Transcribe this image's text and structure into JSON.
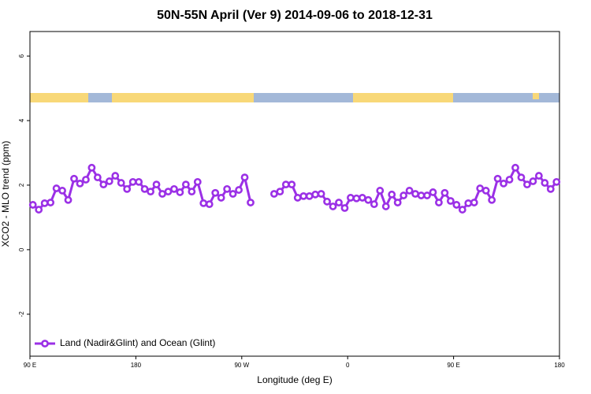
{
  "chart_data": {
    "type": "line",
    "title": "50N-55N April (Ver 9)   2014-09-06 to 2018-12-31",
    "xlabel": "Longitude (deg E)",
    "ylabel": "XCO2 - MLO trend (ppm)",
    "x": [
      92.5,
      97.5,
      102.5,
      107.5,
      112.5,
      117.5,
      122.5,
      127.5,
      132.5,
      137.5,
      142.5,
      147.5,
      152.5,
      157.5,
      162.5,
      167.5,
      172.5,
      177.5,
      182.5,
      187.5,
      192.5,
      197.5,
      202.5,
      207.5,
      212.5,
      217.5,
      222.5,
      227.5,
      232.5,
      237.5,
      242.5,
      247.5,
      252.5,
      257.5,
      262.5,
      267.5,
      272.5,
      277.5,
      282.5,
      287.5,
      292.5,
      297.5,
      302.5,
      307.5,
      312.5,
      317.5,
      322.5,
      327.5,
      332.5,
      337.5,
      342.5,
      347.5,
      352.5,
      357.5,
      362.5,
      367.5,
      372.5,
      377.5,
      382.5,
      387.5,
      392.5,
      397.5,
      402.5,
      407.5,
      412.5,
      417.5,
      422.5,
      427.5,
      432.5,
      437.5,
      442.5,
      447.5,
      452.5,
      457.5,
      462.5,
      467.5,
      472.5,
      477.5,
      482.5,
      487.5,
      492.5,
      497.5,
      502.5,
      507.5,
      512.5,
      517.5,
      522.5,
      527.5,
      532.5,
      537.5
    ],
    "series": [
      {
        "name": "Land (Nadir&Glint) and Ocean (Glint)",
        "color": "#9b30e6",
        "values": [
          1.39,
          1.24,
          1.44,
          1.46,
          1.9,
          1.83,
          1.54,
          2.2,
          2.05,
          2.17,
          2.54,
          2.24,
          2.02,
          2.12,
          2.29,
          2.07,
          1.88,
          2.1,
          2.1,
          1.88,
          1.8,
          2.02,
          1.73,
          1.8,
          1.88,
          1.78,
          2.02,
          1.8,
          2.1,
          1.44,
          1.41,
          1.76,
          1.61,
          1.88,
          1.73,
          1.85,
          2.24,
          1.46,
          null,
          null,
          null,
          1.73,
          1.8,
          2.02,
          2.02,
          1.61,
          1.66,
          1.66,
          1.71,
          1.73,
          1.49,
          1.34,
          1.46,
          1.29,
          1.61,
          1.59,
          1.61,
          1.54,
          1.41,
          1.83,
          1.34,
          1.71,
          1.46,
          1.68,
          1.83,
          1.73,
          1.68,
          1.68,
          1.78,
          1.46,
          1.76,
          1.51,
          1.39,
          1.24,
          1.44,
          1.46,
          1.9,
          1.83,
          1.54,
          2.2,
          2.05,
          2.17,
          2.54,
          2.24,
          2.02,
          2.12,
          2.29,
          2.07,
          1.88,
          2.1
        ]
      }
    ],
    "xlim": [
      90,
      540
    ],
    "xticks": [
      {
        "value": 90,
        "label": "90 E"
      },
      180,
      {
        "value": 270,
        "label": "90 W"
      },
      {
        "value": 360,
        "label": "0"
      },
      {
        "value": 450,
        "label": "90 E"
      },
      {
        "value": 540,
        "label": "180"
      }
    ],
    "ylim": [
      -3.3,
      6.76
    ],
    "yticks": [
      -2,
      0,
      2,
      4,
      6
    ],
    "legend": "bottomleft"
  }
}
